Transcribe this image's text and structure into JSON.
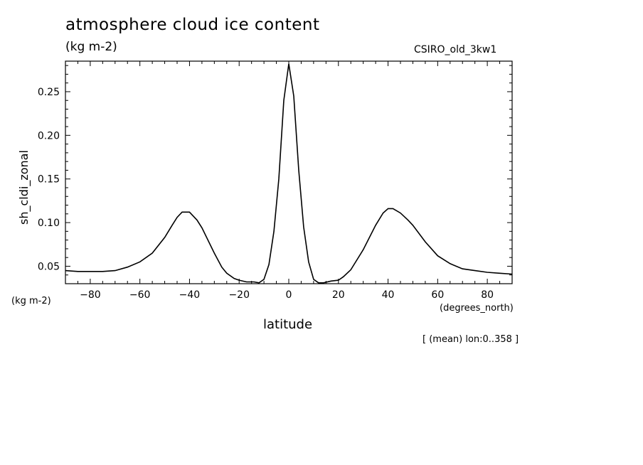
{
  "chart_data": {
    "type": "line",
    "title": "atmosphere cloud ice content",
    "units": "(kg m-2)",
    "model": "CSIRO_old_3kw1",
    "ylabel": "sh_cldi_zonal",
    "yunit": "(kg m-2)",
    "xlabel": "latitude",
    "xunit": "(degrees_north)",
    "note": "[ (mean) lon:0..358 ]",
    "xlim": [
      -90,
      90
    ],
    "ylim": [
      0.03,
      0.285
    ],
    "xticks": [
      -80,
      -60,
      -40,
      -20,
      0,
      20,
      40,
      60,
      80
    ],
    "xtick_labels": [
      "−80",
      "−60",
      "−40",
      "−20",
      "0",
      "20",
      "40",
      "60",
      "80"
    ],
    "yticks": [
      0.05,
      0.1,
      0.15,
      0.2,
      0.25
    ],
    "ytick_labels": [
      "0.05",
      "0.10",
      "0.15",
      "0.20",
      "0.25"
    ],
    "series": [
      {
        "x": [
          -90,
          -85,
          -80,
          -75,
          -70,
          -65,
          -60,
          -55,
          -50,
          -47,
          -45,
          -43,
          -40,
          -37,
          -35,
          -30,
          -27,
          -25,
          -22,
          -20,
          -17,
          -14,
          -12,
          -10,
          -8,
          -6,
          -4,
          -2,
          0,
          2,
          4,
          6,
          8,
          10,
          12,
          14,
          17,
          20,
          22,
          25,
          30,
          35,
          38,
          40,
          42,
          45,
          48,
          50,
          55,
          60,
          65,
          70,
          75,
          80,
          85,
          90
        ],
        "y": [
          0.045,
          0.044,
          0.044,
          0.044,
          0.045,
          0.049,
          0.055,
          0.065,
          0.083,
          0.097,
          0.106,
          0.112,
          0.112,
          0.103,
          0.094,
          0.065,
          0.049,
          0.042,
          0.036,
          0.034,
          0.032,
          0.032,
          0.031,
          0.035,
          0.052,
          0.09,
          0.15,
          0.24,
          0.282,
          0.245,
          0.16,
          0.095,
          0.055,
          0.035,
          0.031,
          0.031,
          0.033,
          0.034,
          0.038,
          0.046,
          0.069,
          0.097,
          0.111,
          0.116,
          0.116,
          0.111,
          0.103,
          0.097,
          0.078,
          0.062,
          0.053,
          0.047,
          0.045,
          0.043,
          0.042,
          0.041
        ]
      }
    ]
  }
}
